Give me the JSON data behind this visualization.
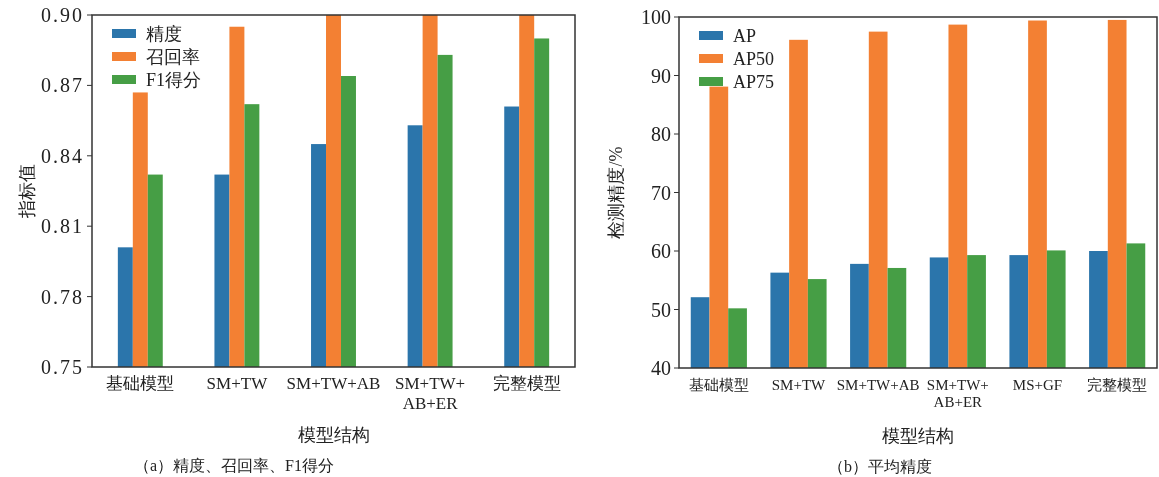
{
  "chart_data": [
    {
      "type": "bar",
      "categories": [
        "基础模型",
        "SM+TW",
        "SM+TW+AB",
        "SM+TW+\nAB+ER",
        "完整模型"
      ],
      "series": [
        {
          "name": "精度",
          "color": "#2b75ab",
          "values": [
            0.801,
            0.832,
            0.845,
            0.853,
            0.861
          ]
        },
        {
          "name": "召回率",
          "color": "#f38033",
          "values": [
            0.867,
            0.895,
            0.9,
            0.9,
            0.9
          ]
        },
        {
          "name": "F1得分",
          "color": "#469e45",
          "values": [
            0.832,
            0.862,
            0.874,
            0.883,
            0.89
          ]
        }
      ],
      "ylim": [
        0.75,
        0.9
      ],
      "yticks": [
        {
          "value": 0.75,
          "label": "0.75"
        },
        {
          "value": 0.78,
          "label": "0.78"
        },
        {
          "value": 0.81,
          "label": "0.81"
        },
        {
          "value": 0.84,
          "label": "0.84"
        },
        {
          "value": 0.87,
          "label": "0.87"
        },
        {
          "value": 0.9,
          "label": "0.90"
        }
      ],
      "ylabel": "指标值",
      "xlabel": "模型结构",
      "legend": "top left",
      "annotations": [
        "（a）精度、召回率、F1得分"
      ]
    },
    {
      "type": "bar",
      "categories": [
        "基础模型",
        "SM+TW",
        "SM+TW+AB",
        "SM+TW+\nAB+ER",
        "MS+GF",
        "完整模型"
      ],
      "series": [
        {
          "name": "AP",
          "color": "#2b75ab",
          "values": [
            52.1,
            56.3,
            57.8,
            58.9,
            59.3,
            60.0
          ]
        },
        {
          "name": "AP50",
          "color": "#f38033",
          "values": [
            88.1,
            96.1,
            97.5,
            98.7,
            99.4,
            99.5
          ]
        },
        {
          "name": "AP75",
          "color": "#469e45",
          "values": [
            50.2,
            55.2,
            57.1,
            59.3,
            60.1,
            61.3
          ]
        }
      ],
      "ylim": [
        40,
        100
      ],
      "yticks": [
        40,
        50,
        60,
        70,
        80,
        90,
        100
      ],
      "ylabel": "检测精度/%",
      "xlabel": "模型结构",
      "legend": "top left",
      "annotations": [
        "（b）平均精度"
      ]
    }
  ]
}
